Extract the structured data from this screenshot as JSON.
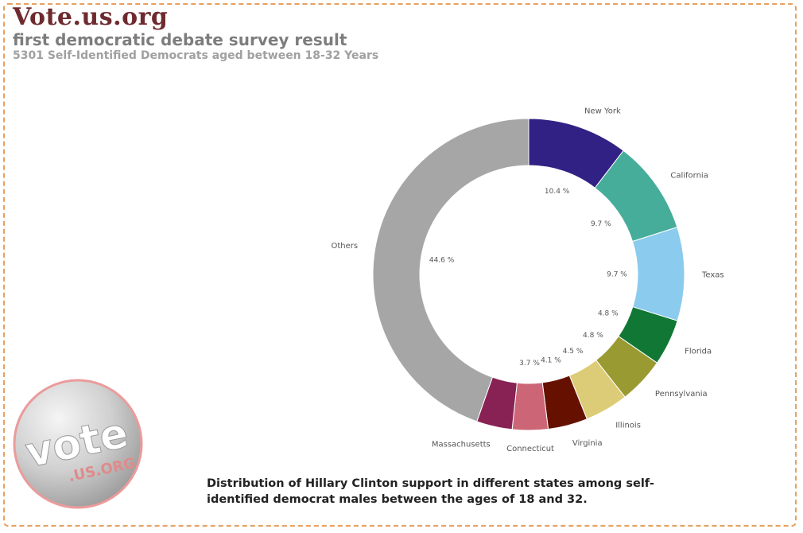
{
  "header": {
    "site_title": "Vote.us.org",
    "subtitle": "first democratic debate survey result",
    "description": "5301 Self-Identified Democrats aged between 18-32 Years"
  },
  "caption": "Distribution of Hillary Clinton support in different states among self-identified democrat males between the ages of 18 and 32.",
  "logo": {
    "main": "vote",
    "sub": ".US.ORG"
  },
  "chart_data": {
    "type": "pie",
    "style": "donut",
    "slices": [
      {
        "label": "New York",
        "value": 10.4,
        "value_label": "10.4 %",
        "color": "#312185"
      },
      {
        "label": "California",
        "value": 9.7,
        "value_label": "9.7 %",
        "color": "#46ad9a"
      },
      {
        "label": "Texas",
        "value": 9.7,
        "value_label": "9.7 %",
        "color": "#8acbee"
      },
      {
        "label": "Florida",
        "value": 4.8,
        "value_label": "4.8 %",
        "color": "#117735"
      },
      {
        "label": "Pennsylvania",
        "value": 4.8,
        "value_label": "4.8 %",
        "color": "#9a9a33"
      },
      {
        "label": "Illinois",
        "value": 4.5,
        "value_label": "4.5 %",
        "color": "#ddcc77"
      },
      {
        "label": "Virginia",
        "value": 4.1,
        "value_label": "4.1 %",
        "color": "#661100"
      },
      {
        "label": "Connecticut",
        "value": 3.7,
        "value_label": "3.7 %",
        "color": "#cc6677"
      },
      {
        "label": "Massachusetts",
        "value": 3.7,
        "value_label": "",
        "color": "#882255"
      },
      {
        "label": "Others",
        "value": 44.6,
        "value_label": "44.6 %",
        "color": "#a6a6a6"
      }
    ]
  }
}
